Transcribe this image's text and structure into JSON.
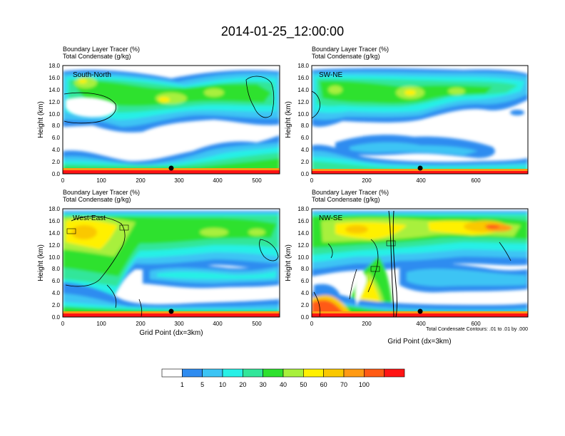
{
  "title": "2014-01-25_12:00:00",
  "xlabel": "Grid Point (dx=3km)",
  "ylabel": "Height (km)",
  "subtitle_line1": "Boundary Layer Tracer   (%)",
  "subtitle_line2": "Total Condensate   (g/kg)",
  "contour_note": "Total Condensate Contours: .01 to .01 by .000",
  "colors": {
    "white": "#ffffff",
    "blue": "#2f8cf0",
    "lightblue": "#3cc4f4",
    "cyan": "#28f0e6",
    "teal": "#32e69a",
    "green": "#2ee12e",
    "lime": "#a8f03c",
    "yellow": "#fff000",
    "gold": "#fac800",
    "orange": "#ff9a14",
    "redorange": "#ff5a14",
    "red": "#ff1414"
  },
  "colorbar": {
    "colors": [
      "#ffffff",
      "#2f8cf0",
      "#3cc4f4",
      "#28f0e6",
      "#32e69a",
      "#2ee12e",
      "#a8f03c",
      "#fff000",
      "#fac800",
      "#ff9a14",
      "#ff5a14",
      "#ff1414"
    ],
    "labels": [
      "1",
      "5",
      "10",
      "20",
      "30",
      "40",
      "50",
      "60",
      "70",
      "100"
    ]
  },
  "chart_data": [
    {
      "type": "heatmap",
      "panel_label": "South-North",
      "xlim": [
        0,
        560
      ],
      "ylim": [
        0,
        18
      ],
      "xticks": [
        "0",
        "100",
        "200",
        "300",
        "400",
        "500"
      ],
      "yticks": [
        "0.0",
        "2.0",
        "4.0",
        "6.0",
        "8.0",
        "10.0",
        "12.0",
        "14.0",
        "16.0",
        "18.0"
      ],
      "marker_x": 280
    },
    {
      "type": "heatmap",
      "panel_label": "SW-NE",
      "xlim": [
        0,
        790
      ],
      "ylim": [
        0,
        18
      ],
      "xticks": [
        "0",
        "200",
        "400",
        "600"
      ],
      "yticks": [
        "0.0",
        "2.0",
        "4.0",
        "6.0",
        "8.0",
        "10.0",
        "12.0",
        "14.0",
        "16.0",
        "18.0"
      ],
      "marker_x": 395
    },
    {
      "type": "heatmap",
      "panel_label": "West-East",
      "xlim": [
        0,
        560
      ],
      "ylim": [
        0,
        18
      ],
      "xticks": [
        "0",
        "100",
        "200",
        "300",
        "400",
        "500"
      ],
      "yticks": [
        "0.0",
        "2.0",
        "4.0",
        "6.0",
        "8.0",
        "10.0",
        "12.0",
        "14.0",
        "16.0",
        "18.0"
      ],
      "marker_x": 280
    },
    {
      "type": "heatmap",
      "panel_label": "NW-SE",
      "xlim": [
        0,
        790
      ],
      "ylim": [
        0,
        18
      ],
      "xticks": [
        "0",
        "200",
        "400",
        "600"
      ],
      "yticks": [
        "0.0",
        "2.0",
        "4.0",
        "6.0",
        "8.0",
        "10.0",
        "12.0",
        "14.0",
        "16.0",
        "18.0"
      ],
      "marker_x": 395
    }
  ]
}
